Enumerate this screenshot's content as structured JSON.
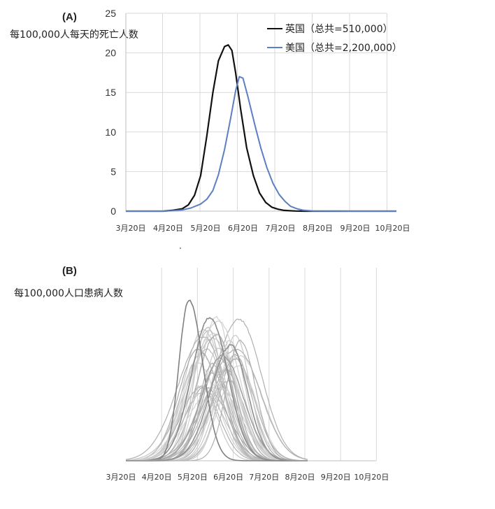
{
  "chart_data": [
    {
      "panel": "(A)",
      "type": "line",
      "ylabel": "每100,000人每天的死亡人数",
      "ylim": [
        0,
        25
      ],
      "yticks": [
        "0",
        "5",
        "10",
        "15",
        "20",
        "25"
      ],
      "x_tick_labels": [
        "3月20日",
        "4月20日",
        "5月20日",
        "6月20日",
        "7月20日",
        "8月20日",
        "9月20日",
        "10月20日"
      ],
      "grid": true,
      "legend": "top-right",
      "series": [
        {
          "name": "英国（总共=510,000）",
          "color": "#111111",
          "x": [
            "3月20日",
            "4月5日",
            "4月20日",
            "4月27日",
            "5月5日",
            "5月10日",
            "5月15日",
            "5月20日",
            "5月25日",
            "5月30日",
            "6月4日",
            "6月9日",
            "6月12日",
            "6月15日",
            "6月18日",
            "6月22日",
            "6月27日",
            "7月2日",
            "7月7日",
            "7月12日",
            "7月17日",
            "7月22日",
            "7月27日",
            "8月1日",
            "8月6日",
            "8月13日",
            "8月20日",
            "9月20日",
            "10月20日",
            "10月27日"
          ],
          "values": [
            0,
            0,
            0,
            0.1,
            0.3,
            0.8,
            2.0,
            4.5,
            9.5,
            15.0,
            19.0,
            20.8,
            21.0,
            20.3,
            17.5,
            13.0,
            8.0,
            4.5,
            2.3,
            1.1,
            0.5,
            0.25,
            0.1,
            0.05,
            0.02,
            0,
            0,
            0,
            0,
            0
          ]
        },
        {
          "name": "美国（总共=2,200,000）",
          "color": "#5b7fc0",
          "x": [
            "3月20日",
            "4月20日",
            "4月27日",
            "5月5日",
            "5月12日",
            "5月20日",
            "5月25日",
            "5月30日",
            "6月4日",
            "6月9日",
            "6月14日",
            "6月18日",
            "6月21日",
            "6月24日",
            "6月28日",
            "7月3日",
            "7月8日",
            "7月13日",
            "7月18日",
            "7月23日",
            "7月28日",
            "8月2日",
            "8月7日",
            "8月12日",
            "8月20日",
            "9月20日",
            "10月20日",
            "10月27日"
          ],
          "values": [
            0,
            0,
            0.05,
            0.15,
            0.4,
            0.9,
            1.5,
            2.6,
            4.6,
            7.8,
            11.8,
            15.2,
            17.0,
            16.8,
            14.5,
            11.0,
            8.0,
            5.5,
            3.5,
            2.1,
            1.2,
            0.6,
            0.3,
            0.12,
            0.03,
            0,
            0,
            0
          ]
        }
      ]
    },
    {
      "panel": "(B)",
      "type": "line",
      "ylabel": "每100,000人口患病人数",
      "x_tick_labels": [
        "3月20日",
        "4月20日",
        "5月20日",
        "6月20日",
        "7月20日",
        "8月20日",
        "9月20日",
        "10月20日"
      ],
      "grid": true,
      "series_note_count": 40
    }
  ]
}
